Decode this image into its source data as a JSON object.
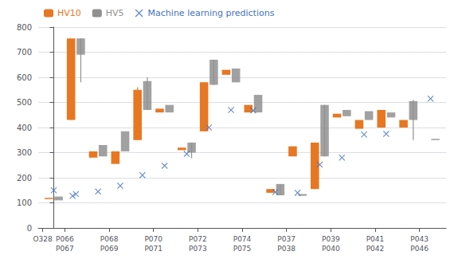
{
  "chart_data": {
    "type": "bar",
    "xlim": [
      -0.7,
      17.7
    ],
    "xticks": [
      {
        "value": -0.5,
        "label": "O328"
      },
      {
        "value": 0.5,
        "label": "P066"
      },
      {
        "value": 0.5,
        "label": "P067"
      },
      {
        "value": 2.5,
        "label": "P068"
      },
      {
        "value": 2.5,
        "label": "P069"
      },
      {
        "value": 4.5,
        "label": "P070"
      },
      {
        "value": 4.5,
        "label": "P071"
      },
      {
        "value": 6.5,
        "label": "P072"
      },
      {
        "value": 6.5,
        "label": "P073"
      },
      {
        "value": 8.5,
        "label": "P074"
      },
      {
        "value": 8.5,
        "label": "P075"
      },
      {
        "value": 10.5,
        "label": "P037"
      },
      {
        "value": 10.5,
        "label": "P038"
      },
      {
        "value": 12.5,
        "label": "P039"
      },
      {
        "value": 12.5,
        "label": "P040"
      },
      {
        "value": 14.5,
        "label": "P041"
      },
      {
        "value": 14.5,
        "label": "P042"
      },
      {
        "value": 16.5,
        "label": "P043"
      },
      {
        "value": 16.5,
        "label": "P046"
      }
    ],
    "ylim": [
      0,
      800
    ],
    "yticks": [
      0,
      100,
      200,
      300,
      400,
      500,
      600,
      700,
      800
    ],
    "grid": true,
    "legend": "upper left",
    "series": [
      {
        "name": "HV10",
        "type": "bar",
        "color": "#E87722",
        "x": [
          0,
          1,
          2,
          3,
          4,
          5,
          6,
          7,
          8,
          9,
          10,
          11,
          12,
          13,
          14,
          15,
          16
        ],
        "low": [
          115,
          430,
          280,
          255,
          350,
          460,
          310,
          385,
          610,
          460,
          140,
          285,
          155,
          440,
          395,
          400,
          400
        ],
        "high": [
          120,
          755,
          305,
          305,
          550,
          475,
          320,
          580,
          630,
          490,
          155,
          325,
          340,
          455,
          430,
          470,
          430
        ],
        "whisker_x": [
          1,
          4,
          7,
          12
        ],
        "whisker_low": [
          430,
          350,
          385,
          155
        ],
        "whisker_high": [
          755,
          560,
          580,
          340
        ]
      },
      {
        "name": "HV5",
        "type": "bar",
        "color": "#909090",
        "x": [
          0,
          1,
          2,
          3,
          4,
          5,
          6,
          7,
          8,
          9,
          10,
          11,
          12,
          13,
          14,
          15,
          16,
          17
        ],
        "low": [
          110,
          690,
          285,
          305,
          470,
          460,
          300,
          570,
          580,
          460,
          130,
          128,
          285,
          445,
          430,
          440,
          430,
          350
        ],
        "high": [
          125,
          755,
          330,
          385,
          585,
          490,
          340,
          670,
          635,
          530,
          175,
          135,
          490,
          470,
          465,
          460,
          505,
          355
        ],
        "whisker_x": [
          1,
          4,
          6,
          7,
          10,
          12,
          16
        ],
        "whisker_low": [
          580,
          470,
          278,
          570,
          130,
          285,
          350
        ],
        "whisker_high": [
          755,
          600,
          340,
          670,
          175,
          490,
          510
        ]
      },
      {
        "name": "Machine learning predictions",
        "type": "scatter",
        "color": "#4472C4",
        "marker": "x",
        "x": [
          0,
          0.85,
          1,
          2,
          3,
          4,
          5,
          6,
          7,
          8,
          9,
          10,
          11,
          12,
          13,
          14,
          15,
          17
        ],
        "values": [
          150,
          128,
          135,
          145,
          168,
          210,
          248,
          295,
          400,
          470,
          468,
          143,
          140,
          252,
          280,
          372,
          375,
          515
        ]
      }
    ]
  }
}
